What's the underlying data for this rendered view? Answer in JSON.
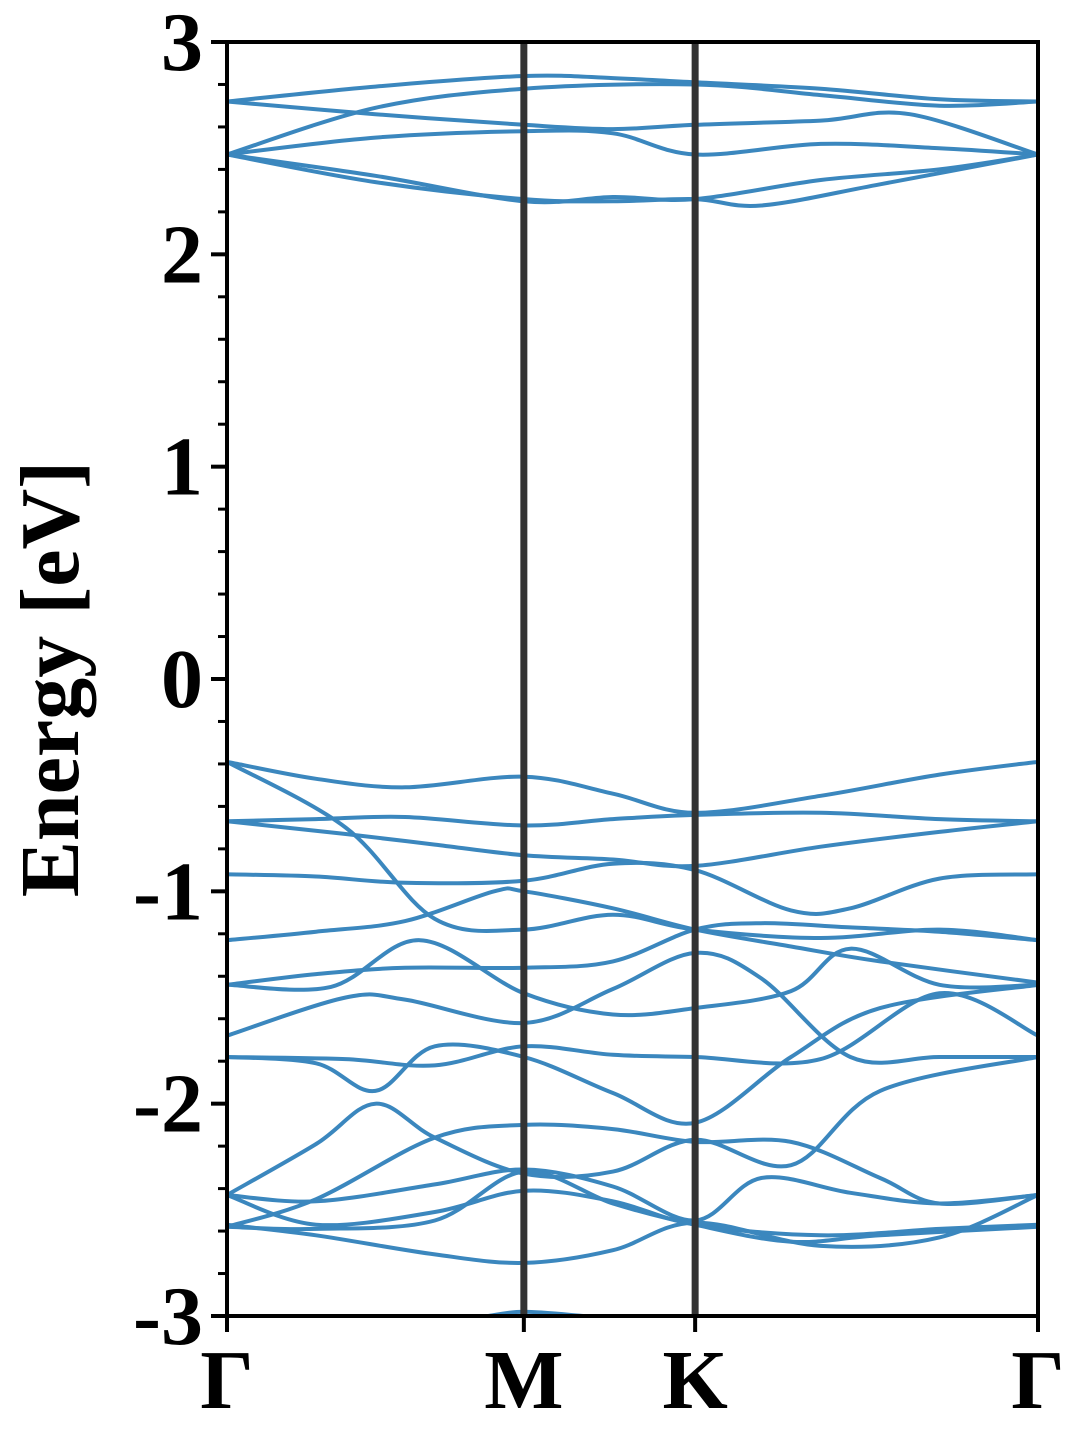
{
  "chart_data": {
    "type": "line",
    "title": "",
    "xlabel": "",
    "ylabel": "Energy [eV]",
    "ylim": [
      -3,
      3
    ],
    "yticks": [
      -3,
      -2,
      -1,
      0,
      1,
      2,
      3
    ],
    "ytick_labels": [
      "-3",
      "-2",
      "-1",
      "0",
      "1",
      "2",
      "3"
    ],
    "yminor_step": 0.2,
    "xlim": [
      0,
      2.732
    ],
    "xticks": [
      0,
      1.0,
      1.577,
      2.732
    ],
    "xtick_labels": [
      "Γ",
      "M",
      "K",
      "Γ"
    ],
    "high_symmetry_lines": [
      1.0,
      1.577
    ],
    "grid": false,
    "colors": {
      "band": "#3b87be",
      "symmetry_line": "#333333",
      "axis": "#000000"
    },
    "series": [
      {
        "x": [
          0,
          0.5,
          1.0,
          1.3,
          1.577,
          2.0,
          2.4,
          2.732
        ],
        "y": [
          2.72,
          2.79,
          2.84,
          2.83,
          2.81,
          2.78,
          2.73,
          2.72
        ]
      },
      {
        "x": [
          0,
          0.5,
          1.0,
          1.577,
          2.0,
          2.4,
          2.732
        ],
        "y": [
          2.47,
          2.69,
          2.78,
          2.8,
          2.75,
          2.7,
          2.72
        ]
      },
      {
        "x": [
          0,
          0.5,
          1.0,
          1.3,
          1.577,
          2.0,
          2.3,
          2.732
        ],
        "y": [
          2.72,
          2.66,
          2.61,
          2.59,
          2.61,
          2.63,
          2.66,
          2.47
        ]
      },
      {
        "x": [
          0,
          0.5,
          1.0,
          1.3,
          1.577,
          2.0,
          2.4,
          2.732
        ],
        "y": [
          2.47,
          2.55,
          2.58,
          2.57,
          2.47,
          2.52,
          2.5,
          2.47
        ]
      },
      {
        "x": [
          0,
          0.5,
          1.0,
          1.3,
          1.577,
          2.0,
          2.4,
          2.732
        ],
        "y": [
          2.47,
          2.37,
          2.25,
          2.27,
          2.26,
          2.35,
          2.4,
          2.47
        ]
      },
      {
        "x": [
          0,
          0.5,
          1.0,
          1.3,
          1.577,
          1.8,
          2.2,
          2.732
        ],
        "y": [
          2.47,
          2.34,
          2.26,
          2.25,
          2.26,
          2.23,
          2.33,
          2.47
        ]
      },
      {
        "x": [
          0,
          0.3,
          0.6,
          1.0,
          1.3,
          1.577,
          2.0,
          2.4,
          2.732
        ],
        "y": [
          -0.39,
          -0.47,
          -0.51,
          -0.46,
          -0.54,
          -0.63,
          -0.55,
          -0.45,
          -0.39
        ]
      },
      {
        "x": [
          0,
          0.3,
          0.6,
          1.0,
          1.3,
          1.577,
          2.0,
          2.4,
          2.732
        ],
        "y": [
          -0.67,
          -0.66,
          -0.65,
          -0.69,
          -0.66,
          -0.64,
          -0.63,
          -0.66,
          -0.67
        ]
      },
      {
        "x": [
          0,
          0.4,
          0.7,
          1.0,
          1.3,
          1.577,
          2.0,
          2.4,
          2.732
        ],
        "y": [
          -0.39,
          -0.7,
          -1.13,
          -1.18,
          -1.11,
          -1.18,
          -1.22,
          -1.18,
          -1.23
        ]
      },
      {
        "x": [
          0,
          0.4,
          0.7,
          1.0,
          1.3,
          1.577,
          2.0,
          2.4,
          2.732
        ],
        "y": [
          -0.67,
          -0.73,
          -0.78,
          -0.83,
          -0.85,
          -0.88,
          -0.79,
          -0.72,
          -0.67
        ]
      },
      {
        "x": [
          0,
          0.3,
          0.6,
          1.0,
          1.3,
          1.577,
          1.9,
          2.1,
          2.4,
          2.732
        ],
        "y": [
          -0.92,
          -0.93,
          -0.96,
          -0.95,
          -0.87,
          -0.9,
          -1.09,
          -1.08,
          -0.94,
          -0.92
        ]
      },
      {
        "x": [
          0,
          0.3,
          0.6,
          0.9,
          1.0,
          1.3,
          1.577,
          1.9,
          2.2,
          2.732
        ],
        "y": [
          -1.23,
          -1.19,
          -1.14,
          -1.0,
          -1.0,
          -1.08,
          -1.18,
          -1.26,
          -1.33,
          -1.43
        ]
      },
      {
        "x": [
          0,
          0.3,
          0.6,
          1.0,
          1.3,
          1.577,
          1.8,
          2.1,
          2.4,
          2.732
        ],
        "y": [
          -1.44,
          -1.39,
          -1.36,
          -1.36,
          -1.33,
          -1.18,
          -1.15,
          -1.17,
          -1.19,
          -1.23
        ]
      },
      {
        "x": [
          0,
          0.35,
          0.65,
          1.0,
          1.3,
          1.577,
          1.9,
          2.1,
          2.4,
          2.732
        ],
        "y": [
          -1.44,
          -1.45,
          -1.23,
          -1.48,
          -1.58,
          -1.55,
          -1.47,
          -1.27,
          -1.44,
          -1.44
        ]
      },
      {
        "x": [
          0,
          0.4,
          0.6,
          1.0,
          1.3,
          1.577,
          1.8,
          2.1,
          2.4,
          2.732
        ],
        "y": [
          -1.68,
          -1.5,
          -1.51,
          -1.62,
          -1.46,
          -1.29,
          -1.41,
          -1.78,
          -1.78,
          -1.78
        ]
      },
      {
        "x": [
          0,
          0.4,
          0.7,
          1.0,
          1.3,
          1.577,
          2.0,
          2.4,
          2.732
        ],
        "y": [
          -1.78,
          -1.79,
          -1.82,
          -1.73,
          -1.77,
          -1.78,
          -1.79,
          -1.48,
          -1.68
        ]
      },
      {
        "x": [
          0,
          0.3,
          0.5,
          0.7,
          1.0,
          1.3,
          1.577,
          1.9,
          2.2,
          2.732
        ],
        "y": [
          -1.78,
          -1.81,
          -1.94,
          -1.73,
          -1.78,
          -1.95,
          -2.09,
          -1.78,
          -1.55,
          -1.44
        ]
      },
      {
        "x": [
          0,
          0.3,
          0.5,
          0.7,
          1.0,
          1.3,
          1.577,
          1.9,
          2.2,
          2.732
        ],
        "y": [
          -2.43,
          -2.19,
          -2.0,
          -2.16,
          -2.33,
          -2.32,
          -2.17,
          -2.29,
          -1.94,
          -1.78
        ]
      },
      {
        "x": [
          0,
          0.3,
          0.7,
          1.0,
          1.3,
          1.577,
          1.9,
          2.2,
          2.4,
          2.732
        ],
        "y": [
          -2.58,
          -2.45,
          -2.16,
          -2.1,
          -2.12,
          -2.18,
          -2.18,
          -2.35,
          -2.47,
          -2.43
        ]
      },
      {
        "x": [
          0,
          0.3,
          0.7,
          1.0,
          1.3,
          1.577,
          1.8,
          2.1,
          2.4,
          2.732
        ],
        "y": [
          -2.43,
          -2.46,
          -2.38,
          -2.31,
          -2.39,
          -2.55,
          -2.35,
          -2.42,
          -2.47,
          -2.43
        ]
      },
      {
        "x": [
          0,
          0.3,
          0.7,
          1.0,
          1.3,
          1.577,
          2.0,
          2.4,
          2.732
        ],
        "y": [
          -2.43,
          -2.57,
          -2.51,
          -2.41,
          -2.46,
          -2.57,
          -2.62,
          -2.59,
          -2.57
        ]
      },
      {
        "x": [
          0,
          0.3,
          0.7,
          1.0,
          1.3,
          1.577,
          2.0,
          2.4,
          2.732
        ],
        "y": [
          -2.57,
          -2.62,
          -2.71,
          -2.75,
          -2.69,
          -2.56,
          -2.67,
          -2.63,
          -2.43
        ]
      },
      {
        "x": [
          0,
          0.3,
          0.7,
          1.0,
          1.3,
          1.577,
          1.9,
          2.2,
          2.732
        ],
        "y": [
          -2.58,
          -2.59,
          -2.55,
          -2.32,
          -2.47,
          -2.57,
          -2.65,
          -2.62,
          -2.58
        ]
      },
      {
        "x": [
          0.88,
          1.0,
          1.2
        ],
        "y": [
          -3.0,
          -2.98,
          -3.0
        ]
      }
    ]
  }
}
